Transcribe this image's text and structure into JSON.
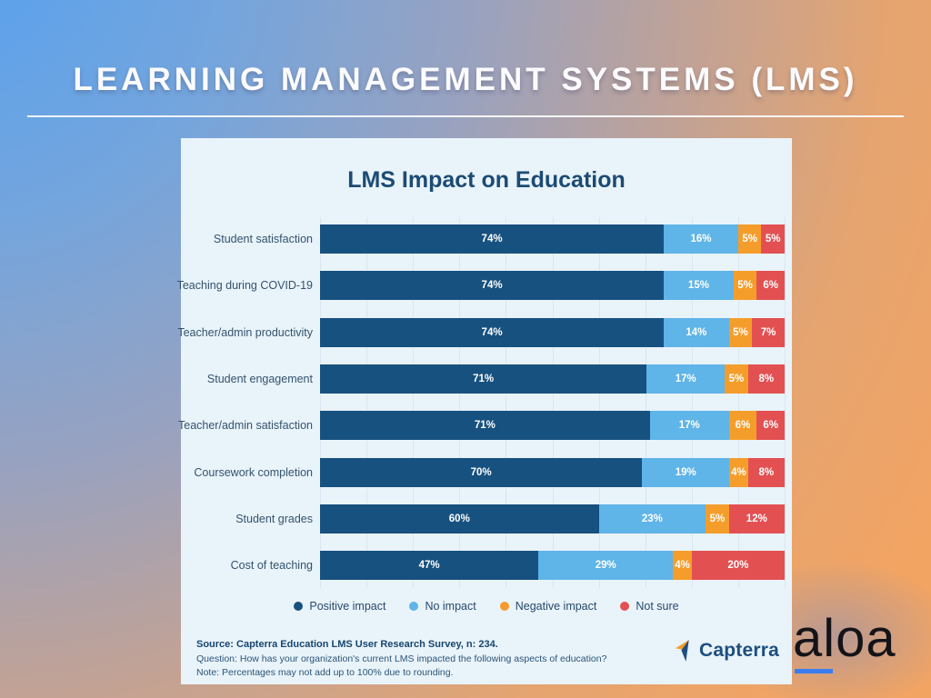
{
  "page_title": "LEARNING MANAGEMENT SYSTEMS (LMS)",
  "watermark": {
    "text": "aloa",
    "underline_color": "#3a7df0"
  },
  "chart_panel": {
    "title": "LMS Impact on Education",
    "background": "#e9f3fa",
    "legend": [
      {
        "label": "Positive impact",
        "color": "#17517f"
      },
      {
        "label": "No impact",
        "color": "#5fb4e8"
      },
      {
        "label": "Negative impact",
        "color": "#f59d2b"
      },
      {
        "label": "Not sure",
        "color": "#e35052"
      }
    ],
    "footer": {
      "source": "Source: Capterra Education LMS User Research Survey, n: 234.",
      "question": "Question: How has your organization's current LMS impacted the following aspects of education?",
      "note": "Note: Percentages may not add up to 100% due to rounding."
    },
    "brand": "Capterra"
  },
  "chart_data": {
    "type": "bar",
    "orientation": "horizontal",
    "stacked": true,
    "title": "LMS Impact on Education",
    "categories": [
      "Student satisfaction",
      "Teaching during COVID-19",
      "Teacher/admin productivity",
      "Student engagement",
      "Teacher/admin satisfaction",
      "Coursework completion",
      "Student grades",
      "Cost of teaching"
    ],
    "series": [
      {
        "name": "Positive impact",
        "color": "#17517f",
        "values": [
          74,
          74,
          74,
          71,
          71,
          70,
          60,
          47
        ]
      },
      {
        "name": "No impact",
        "color": "#5fb4e8",
        "values": [
          16,
          15,
          14,
          17,
          17,
          19,
          23,
          29
        ]
      },
      {
        "name": "Negative impact",
        "color": "#f59d2b",
        "values": [
          5,
          5,
          5,
          5,
          6,
          4,
          5,
          4
        ]
      },
      {
        "name": "Not sure",
        "color": "#e35052",
        "values": [
          5,
          6,
          7,
          8,
          6,
          8,
          12,
          20
        ]
      }
    ],
    "value_suffix": "%",
    "xlim": [
      0,
      100
    ],
    "grid": true,
    "legend_position": "bottom"
  }
}
